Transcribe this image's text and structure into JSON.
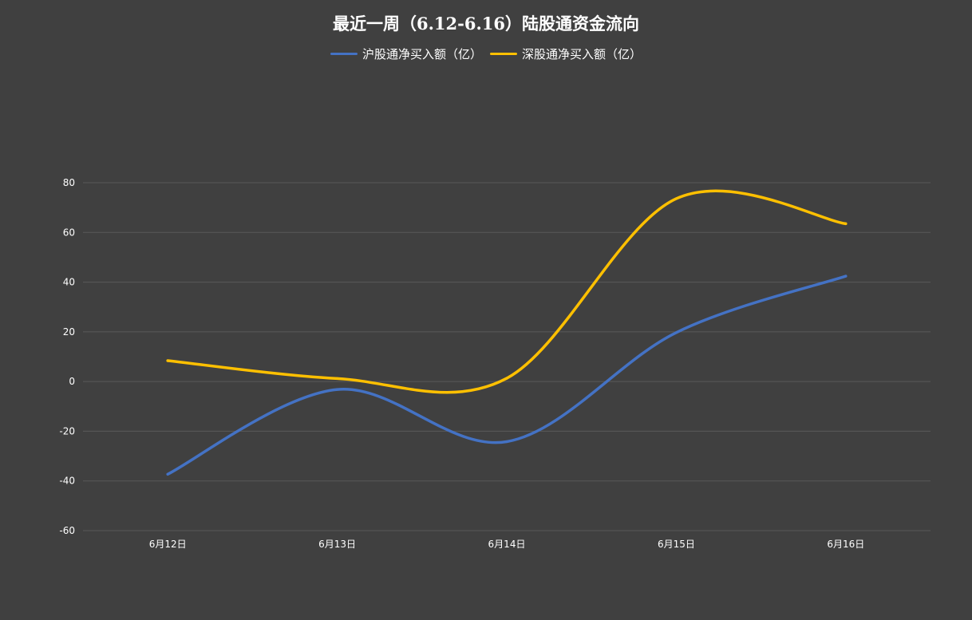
{
  "chart_data": {
    "type": "line",
    "title": "最近一周（6.12-6.16）陆股通资金流向",
    "categories": [
      "6月12日",
      "6月13日",
      "6月14日",
      "6月15日",
      "6月16日"
    ],
    "series": [
      {
        "name": "沪股通净买入额（亿）",
        "values": [
          -37.3,
          -3.2,
          -24.2,
          19.7,
          42.4
        ],
        "color": "#4472c4"
      },
      {
        "name": "深股通净买入额（亿）",
        "values": [
          8.4,
          1.2,
          1.3,
          73.6,
          63.5
        ],
        "color": "#ffc000"
      }
    ],
    "ylim": [
      -60,
      80
    ],
    "yticks": [
      80,
      60,
      40,
      20,
      0,
      -20,
      -40,
      -60
    ],
    "grid": true,
    "legend_position": "top-center",
    "xlabel": "",
    "ylabel": ""
  },
  "colors": {
    "background": "#404040",
    "gridline": "#595959",
    "text": "#ffffff"
  }
}
